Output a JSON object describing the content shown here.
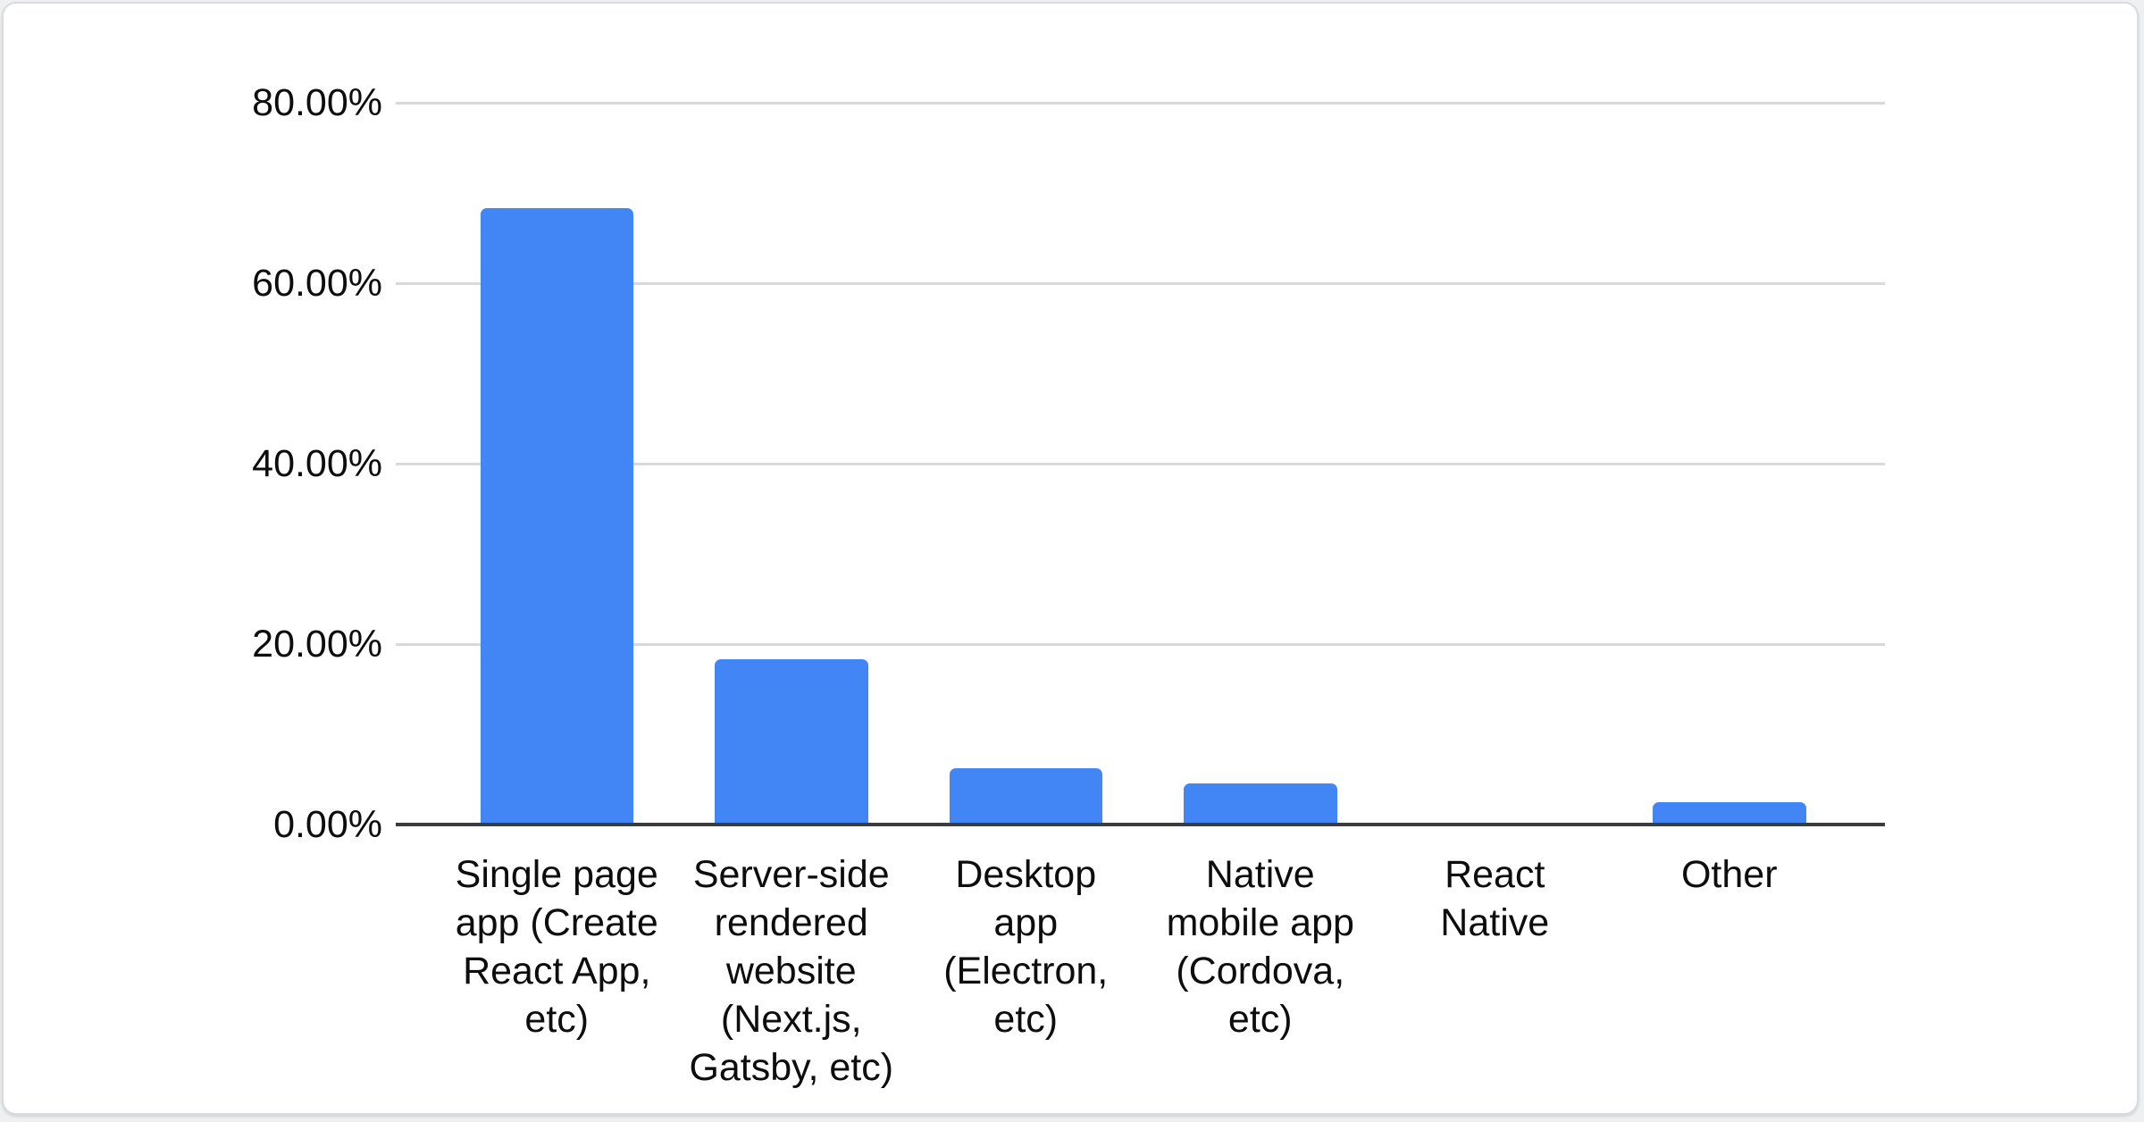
{
  "page": {
    "background": "#eef0f2"
  },
  "card": {
    "background": "#ffffff",
    "border_color": "#d9dbde"
  },
  "chart_data": {
    "type": "bar",
    "categories": [
      "Single page app (Create React App, etc)",
      "Server-side rendered website (Next.js, Gatsby, etc)",
      "Desktop app (Electron, etc)",
      "Native mobile app (Cordova, etc)",
      "React Native",
      "Other"
    ],
    "category_lines": [
      [
        "Single page",
        "app (Create",
        "React App,",
        "etc)"
      ],
      [
        "Server-side",
        "rendered",
        "website",
        "(Next.js,",
        "Gatsby, etc)"
      ],
      [
        "Desktop",
        "app",
        "(Electron,",
        "etc)"
      ],
      [
        "Native",
        "mobile app",
        "(Cordova,",
        "etc)"
      ],
      [
        "React",
        "Native"
      ],
      [
        "Other"
      ]
    ],
    "values": [
      68.3,
      18.3,
      6.2,
      4.6,
      0,
      2.5
    ],
    "value_unit": "percent",
    "y_ticks": [
      {
        "label": "80.00%",
        "value": 80
      },
      {
        "label": "60.00%",
        "value": 60
      },
      {
        "label": "40.00%",
        "value": 40
      },
      {
        "label": "20.00%",
        "value": 20
      },
      {
        "label": "0.00%",
        "value": 0
      }
    ],
    "ylim": [
      0,
      80
    ],
    "grid": true,
    "legend": "none",
    "colors": {
      "bar": "#4285f4",
      "axis": "#3a3c3e",
      "gridline": "#d9d9d9",
      "label_text": "#0d0d0d"
    }
  }
}
